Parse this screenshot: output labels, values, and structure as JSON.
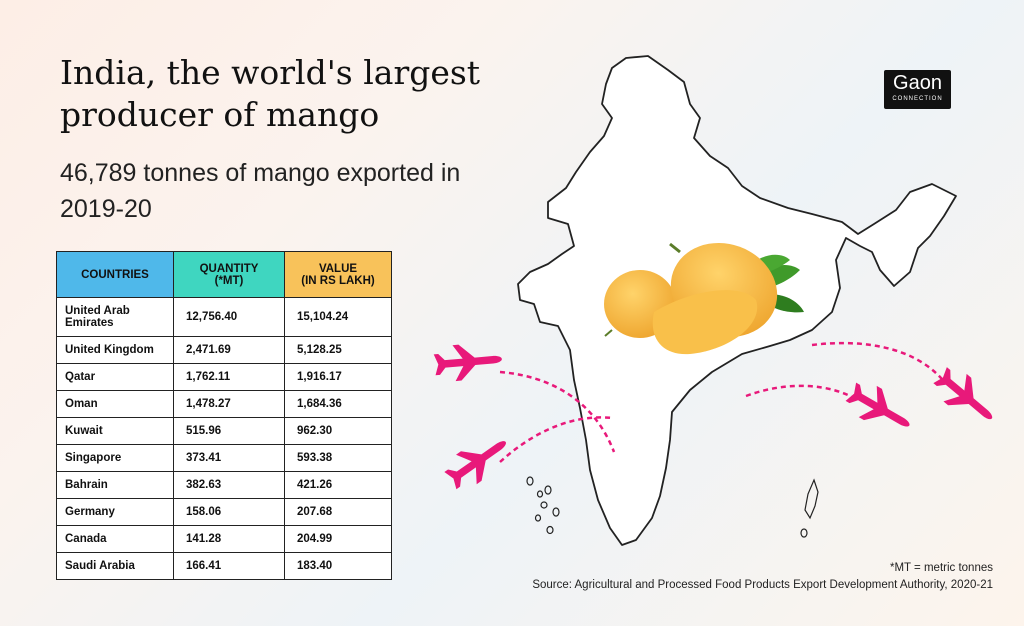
{
  "title": "India, the world's largest producer of mango",
  "subtitle": "46,789 tonnes of mango exported in 2019-20",
  "logo": {
    "name": "Gaon",
    "tagline": "CONNECTION"
  },
  "table": {
    "headers": [
      "COUNTRIES",
      "QUANTITY (*MT)",
      "VALUE (IN RS LAKH)"
    ],
    "rows": [
      [
        "United Arab Emirates",
        "12,756.40",
        "15,104.24"
      ],
      [
        "United Kingdom",
        "2,471.69",
        "5,128.25"
      ],
      [
        "Qatar",
        "1,762.11",
        "1,916.17"
      ],
      [
        "Oman",
        "1,478.27",
        "1,684.36"
      ],
      [
        "Kuwait",
        "515.96",
        "962.30"
      ],
      [
        "Singapore",
        "373.41",
        "593.38"
      ],
      [
        "Bahrain",
        "382.63",
        "421.26"
      ],
      [
        "Germany",
        "158.06",
        "207.68"
      ],
      [
        "Canada",
        "141.28",
        "204.99"
      ],
      [
        "Saudi Arabia",
        "166.41",
        "183.40"
      ]
    ]
  },
  "footnote": "*MT = metric tonnes",
  "source": "Source: Agricultural and Processed Food Products Export Development Authority, 2020-21",
  "colors": {
    "countries_header": "#4fb8ea",
    "quantity_header": "#3fd6c0",
    "value_header": "#f8c25a",
    "plane": "#e8197a",
    "mango": "#f6b73c",
    "leaf": "#3f9a2a"
  }
}
